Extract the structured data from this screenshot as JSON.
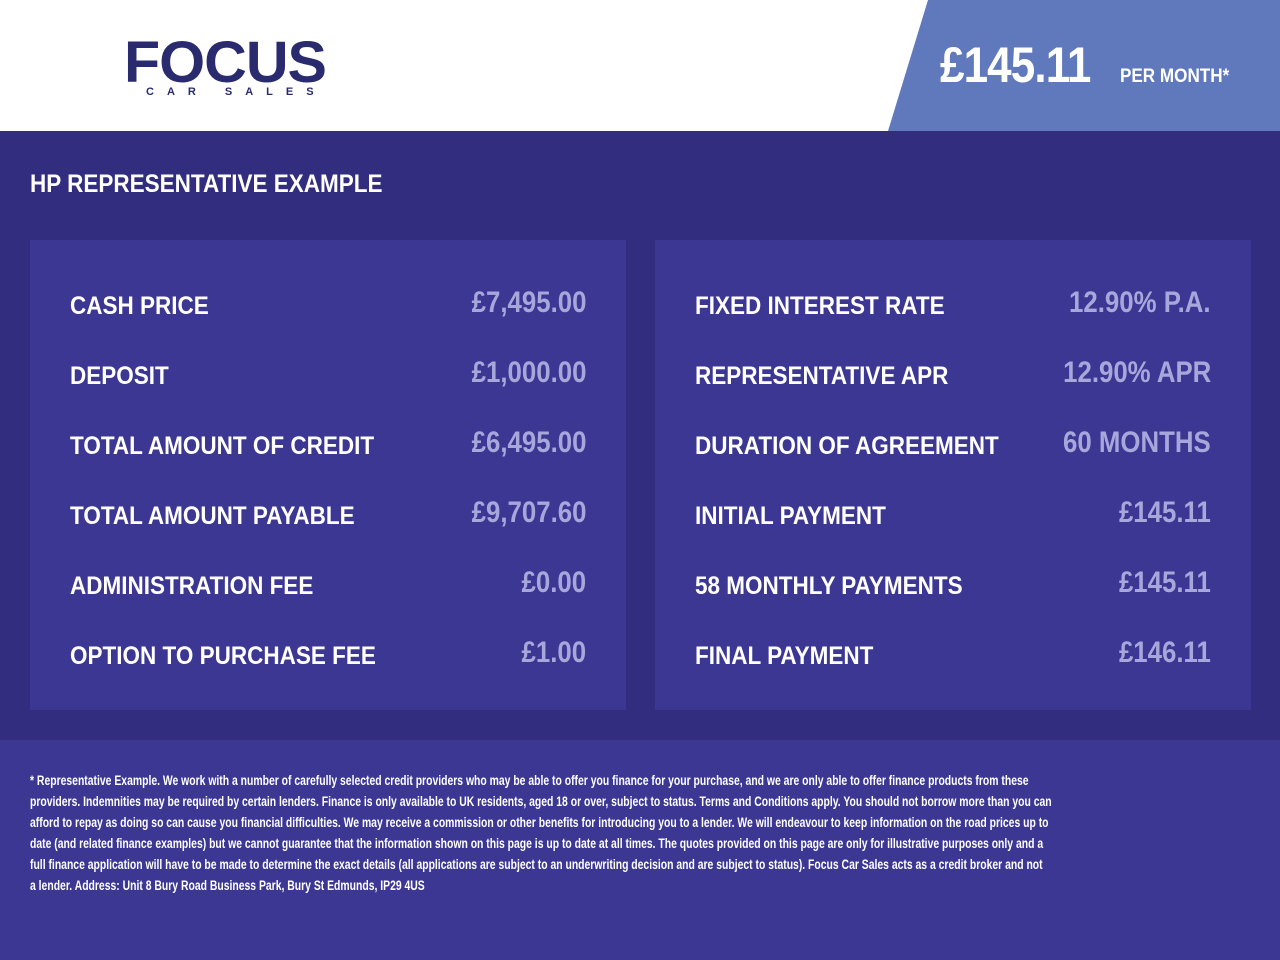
{
  "header": {
    "logo_text": "FOCUS",
    "logo_sub": "CAR SALES",
    "price": "£145.11",
    "price_suffix": "PER MONTH*"
  },
  "title": "HP REPRESENTATIVE EXAMPLE",
  "left": [
    {
      "label": "CASH PRICE",
      "value": "£7,495.00"
    },
    {
      "label": "DEPOSIT",
      "value": "£1,000.00"
    },
    {
      "label": "TOTAL AMOUNT OF CREDIT",
      "value": "£6,495.00"
    },
    {
      "label": "TOTAL AMOUNT PAYABLE",
      "value": "£9,707.60"
    },
    {
      "label": "ADMINISTRATION FEE",
      "value": "£0.00"
    },
    {
      "label": "OPTION TO PURCHASE FEE",
      "value": "£1.00"
    }
  ],
  "right": [
    {
      "label": "FIXED INTEREST RATE",
      "value": "12.90% P.A."
    },
    {
      "label": "REPRESENTATIVE APR",
      "value": "12.90% APR"
    },
    {
      "label": "DURATION OF AGREEMENT",
      "value": "60 MONTHS"
    },
    {
      "label": "INITIAL PAYMENT",
      "value": "£145.11"
    },
    {
      "label": "58 MONTHLY PAYMENTS",
      "value": "£145.11"
    },
    {
      "label": "FINAL PAYMENT",
      "value": "£146.11"
    }
  ],
  "footer_lines": [
    "* Representative Example. We work with a number of carefully selected credit providers who may be able to offer you finance for your purchase, and we are only able to offer finance products from these",
    "providers. Indemnities may be required by certain lenders. Finance is only available to UK residents, aged 18 or over, subject to status. Terms and Conditions apply. You should not borrow more than you can",
    "afford to repay as doing so can cause you financial difficulties. We may receive a commission or other benefits for introducing you to a lender. We will endeavour to keep information on the road prices up to",
    "date (and related finance examples) but we cannot guarantee that the information shown on this page is up to date at all times. The quotes provided on this page are only for illustrative purposes only and a",
    "full finance application will have to be made to determine the exact details (all applications are subject to an underwriting decision and are subject to status). Focus Car Sales acts as a credit broker and not",
    "a lender. Address: Unit 8 Bury Road Business Park, Bury St Edmunds, IP29 4US"
  ]
}
